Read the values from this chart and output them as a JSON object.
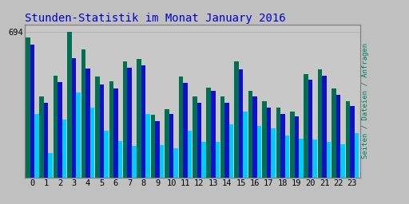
{
  "title": "Stunden-Statistik im Monat January 2016",
  "ylabel_right": "Seiten / Dateien / Anfragen",
  "hours": [
    0,
    1,
    2,
    3,
    4,
    5,
    6,
    7,
    8,
    9,
    10,
    11,
    12,
    13,
    14,
    15,
    16,
    17,
    18,
    19,
    20,
    21,
    22,
    23
  ],
  "green_values": [
    670,
    385,
    485,
    694,
    610,
    480,
    460,
    555,
    565,
    300,
    325,
    480,
    385,
    430,
    385,
    555,
    415,
    365,
    335,
    315,
    495,
    515,
    425,
    365
  ],
  "blue_values": [
    635,
    355,
    455,
    570,
    520,
    445,
    425,
    525,
    535,
    270,
    305,
    450,
    355,
    415,
    355,
    515,
    385,
    335,
    305,
    290,
    465,
    485,
    395,
    340
  ],
  "cyan_values": [
    305,
    115,
    275,
    405,
    335,
    225,
    175,
    150,
    305,
    155,
    140,
    225,
    170,
    170,
    255,
    315,
    245,
    235,
    200,
    185,
    180,
    170,
    160,
    210
  ],
  "background_color": "#c0c0c0",
  "plot_bg_color": "#c8c8c8",
  "bar_green": "#007050",
  "bar_blue": "#1010cc",
  "bar_cyan": "#00ccff",
  "title_color": "#0000cc",
  "ylabel_right_color": "#008060",
  "grid_color": "#b0b0b0",
  "title_fontsize": 10,
  "tick_fontsize": 7.5,
  "ylim": [
    0,
    730
  ],
  "ytick_val": 694
}
